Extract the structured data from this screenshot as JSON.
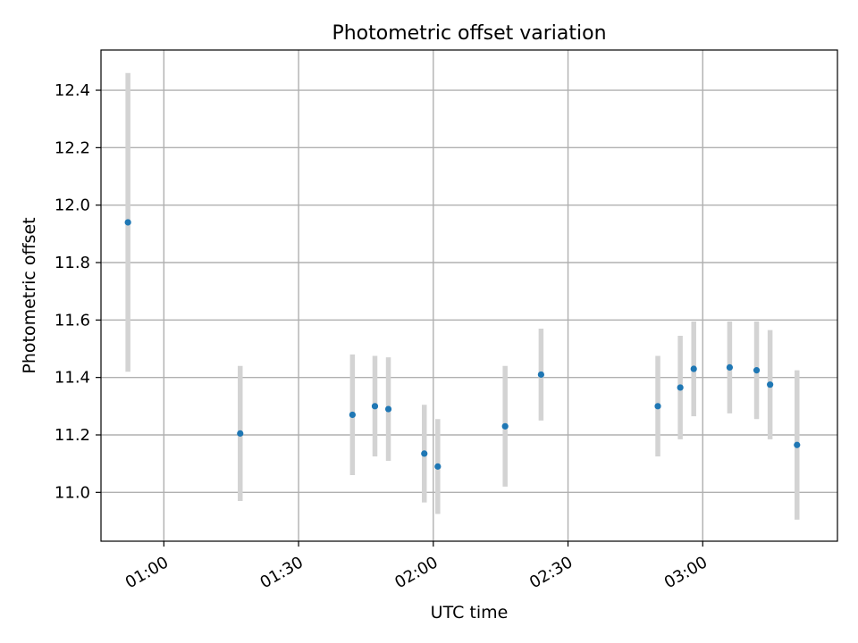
{
  "chart_data": {
    "type": "scatter",
    "title": "Photometric offset variation",
    "xlabel": "UTC time",
    "ylabel": "Photometric offset",
    "xlim": [
      "00:46",
      "03:30"
    ],
    "ylim": [
      10.83,
      12.54
    ],
    "x_ticks": [
      "01:00",
      "01:30",
      "02:00",
      "02:30",
      "03:00"
    ],
    "y_ticks": [
      "11.0",
      "11.2",
      "11.4",
      "11.6",
      "11.8",
      "12.0",
      "12.2",
      "12.4"
    ],
    "grid": true,
    "marker_color": "#1f77b4",
    "errorbar_color": "#d3d3d3",
    "series": [
      {
        "points": [
          {
            "x": "00:52",
            "y": 11.94,
            "err": 0.52
          },
          {
            "x": "01:17",
            "y": 11.205,
            "err": 0.235
          },
          {
            "x": "01:42",
            "y": 11.27,
            "err": 0.21
          },
          {
            "x": "01:47",
            "y": 11.3,
            "err": 0.175
          },
          {
            "x": "01:50",
            "y": 11.29,
            "err": 0.18
          },
          {
            "x": "01:58",
            "y": 11.135,
            "err": 0.17
          },
          {
            "x": "02:01",
            "y": 11.09,
            "err": 0.165
          },
          {
            "x": "02:16",
            "y": 11.23,
            "err": 0.21
          },
          {
            "x": "02:24",
            "y": 11.41,
            "err": 0.16
          },
          {
            "x": "02:50",
            "y": 11.3,
            "err": 0.175
          },
          {
            "x": "02:55",
            "y": 11.365,
            "err": 0.18
          },
          {
            "x": "02:58",
            "y": 11.43,
            "err": 0.165
          },
          {
            "x": "03:06",
            "y": 11.435,
            "err": 0.16
          },
          {
            "x": "03:12",
            "y": 11.425,
            "err": 0.17
          },
          {
            "x": "03:15",
            "y": 11.375,
            "err": 0.19
          },
          {
            "x": "03:21",
            "y": 11.165,
            "err": 0.26
          }
        ]
      }
    ]
  }
}
